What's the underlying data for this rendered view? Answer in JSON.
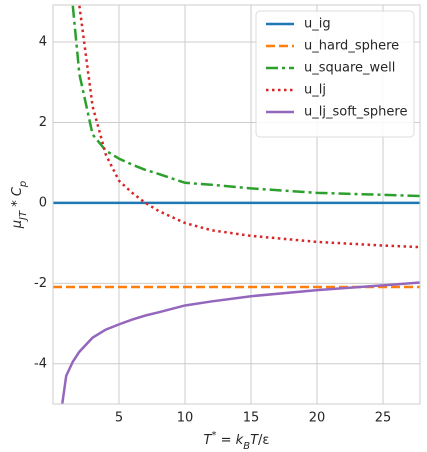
{
  "chart_data": {
    "type": "line",
    "xlabel": "T^{*} = k_{B}T/ε",
    "ylabel": "μ_{JT} * C_{p}",
    "x": [
      0,
      0.7,
      1,
      1.5,
      2,
      3,
      4,
      5,
      6,
      7,
      8,
      10,
      12,
      15,
      20,
      25,
      27.8
    ],
    "series": [
      {
        "name": "u_ig",
        "color": "#1f77b4",
        "dash": "solid",
        "values": [
          0,
          0,
          0,
          0,
          0,
          0,
          0,
          0,
          0,
          0,
          0,
          0,
          0,
          0,
          0,
          0,
          0
        ]
      },
      {
        "name": "u_hard_sphere",
        "color": "#ff7f0e",
        "dash": "dashed",
        "values": [
          -2.09,
          -2.09,
          -2.09,
          -2.09,
          -2.09,
          -2.09,
          -2.09,
          -2.09,
          -2.09,
          -2.09,
          -2.09,
          -2.09,
          -2.09,
          -2.09,
          -2.09,
          -2.09,
          -2.09
        ]
      },
      {
        "name": "u_square_well",
        "color": "#2ca02c",
        "dash": "dashdot",
        "values": [
          null,
          null,
          null,
          4.9,
          3.2,
          1.7,
          1.3,
          1.1,
          0.95,
          0.82,
          0.72,
          0.5,
          0.45,
          0.36,
          0.25,
          0.2,
          0.17
        ]
      },
      {
        "name": "u_lj",
        "color": "#d62728",
        "dash": "dotted",
        "values": [
          null,
          null,
          null,
          null,
          4.9,
          2.4,
          1.2,
          0.55,
          0.25,
          0,
          -0.2,
          -0.5,
          -0.68,
          -0.82,
          -0.97,
          -1.06,
          -1.1
        ]
      },
      {
        "name": "u_lj_soft_sphere",
        "color": "#9467bd",
        "dash": "solid",
        "values": [
          null,
          -5,
          -4.3,
          -3.95,
          -3.7,
          -3.35,
          -3.15,
          -3.02,
          -2.9,
          -2.8,
          -2.72,
          -2.55,
          -2.45,
          -2.32,
          -2.17,
          -2.05,
          -1.98
        ]
      }
    ],
    "xlim": [
      0,
      27.8
    ],
    "ylim": [
      -5,
      4.92
    ],
    "xticks": [
      5,
      10,
      15,
      20,
      25
    ],
    "yticks": [
      -4,
      -2,
      0,
      2,
      4
    ],
    "grid": true,
    "legend": "upper right"
  }
}
